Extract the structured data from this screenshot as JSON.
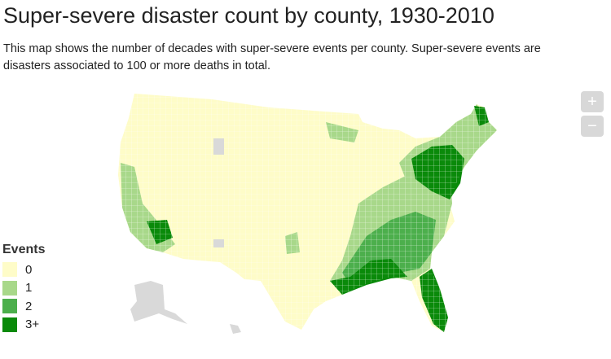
{
  "title": "Super-severe disaster count by county, 1930-2010",
  "description": "This map shows the number of decades with super-severe events per county. Super-severe events are disasters associated to 100 or more deaths in total.",
  "zoom": {
    "in_label": "+",
    "out_label": "−"
  },
  "legend": {
    "title": "Events",
    "items": [
      {
        "label": "0",
        "color": "#fefcc8"
      },
      {
        "label": "1",
        "color": "#a8d88a"
      },
      {
        "label": "2",
        "color": "#4caf4c"
      },
      {
        "label": "3+",
        "color": "#0a8a0a"
      }
    ]
  },
  "no_data_color": "#d9d9d9"
}
